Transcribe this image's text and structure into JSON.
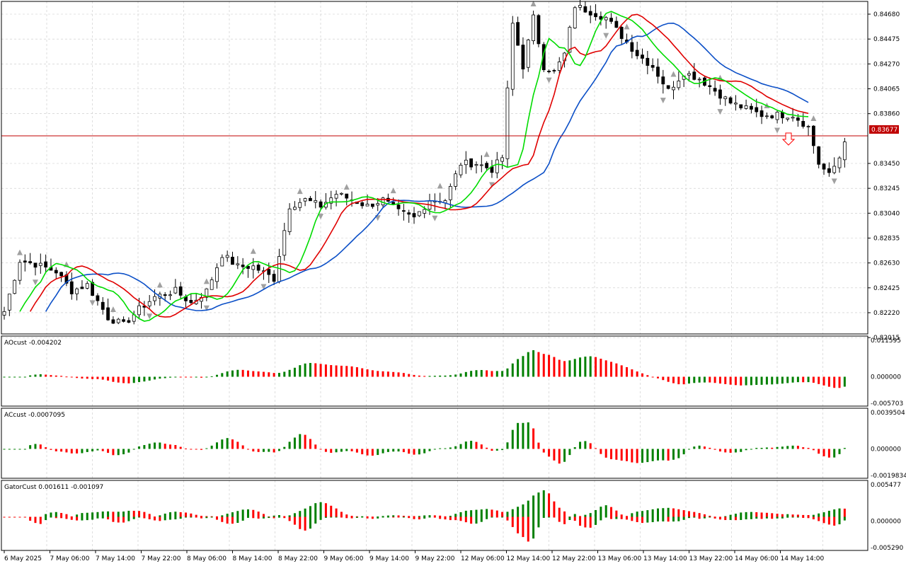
{
  "window": {
    "symbol_current_price": "0.83677"
  },
  "colors": {
    "bull": "#008000",
    "bear": "#ff0000",
    "grid": "#c8c8c8",
    "jaw": "#0b4fc7",
    "teeth": "#e00000",
    "lips": "#00dc00",
    "price_line": "#c00000",
    "fractal": "#a0a0a0"
  },
  "panels": {
    "main": {
      "ylim": [
        0.82045,
        0.84785
      ],
      "ticks": [
        "0.84680",
        "0.84475",
        "0.84270",
        "0.84065",
        "0.83860",
        "0.83450",
        "0.83245",
        "0.83040",
        "0.82835",
        "0.82630",
        "0.82425",
        "0.82220",
        "0.82015"
      ]
    },
    "ao": {
      "title": "AOcust -0.004202",
      "ticks": [
        "0.011595",
        "0.000000",
        "-0.005703"
      ]
    },
    "ac": {
      "title": "ACcust -0.0007095",
      "ticks": [
        "0.0039504",
        "0.000000",
        "-0.0019834"
      ]
    },
    "gator": {
      "title": "GatorCust 0.001611 -0.001097",
      "ticks": [
        "0.005477",
        "0.000000",
        "-0.005290"
      ]
    }
  },
  "time_axis": [
    "6 May 2025",
    "7 May 06:00",
    "7 May 14:00",
    "7 May 22:00",
    "8 May 06:00",
    "8 May 14:00",
    "8 May 22:00",
    "9 May 06:00",
    "9 May 14:00",
    "9 May 22:00",
    "12 May 06:00",
    "12 May 14:00",
    "12 May 22:00",
    "13 May 06:00",
    "13 May 14:00",
    "13 May 22:00",
    "14 May 06:00",
    "14 May 14:00"
  ],
  "chart_data": {
    "type": "candlestick",
    "close_anchors": [
      [
        0,
        0.8223
      ],
      [
        3,
        0.8265
      ],
      [
        6,
        0.8262
      ],
      [
        10,
        0.8256
      ],
      [
        13,
        0.824
      ],
      [
        16,
        0.8245
      ],
      [
        20,
        0.8218
      ],
      [
        23,
        0.8212
      ],
      [
        26,
        0.8225
      ],
      [
        29,
        0.8235
      ],
      [
        33,
        0.824
      ],
      [
        36,
        0.823
      ],
      [
        39,
        0.824
      ],
      [
        42,
        0.827
      ],
      [
        45,
        0.826
      ],
      [
        48,
        0.826
      ],
      [
        52,
        0.825
      ],
      [
        55,
        0.831
      ],
      [
        58,
        0.8315
      ],
      [
        61,
        0.831
      ],
      [
        64,
        0.832
      ],
      [
        67,
        0.8315
      ],
      [
        70,
        0.831
      ],
      [
        73,
        0.8315
      ],
      [
        76,
        0.8305
      ],
      [
        79,
        0.83
      ],
      [
        82,
        0.8315
      ],
      [
        85,
        0.8315
      ],
      [
        88,
        0.8345
      ],
      [
        91,
        0.8345
      ],
      [
        94,
        0.834
      ],
      [
        96,
        0.835
      ],
      [
        98,
        0.846
      ],
      [
        100,
        0.8425
      ],
      [
        102,
        0.8465
      ],
      [
        104,
        0.8425
      ],
      [
        106,
        0.842
      ],
      [
        108,
        0.8435
      ],
      [
        110,
        0.8475
      ],
      [
        113,
        0.847
      ],
      [
        116,
        0.8465
      ],
      [
        119,
        0.845
      ],
      [
        122,
        0.8435
      ],
      [
        125,
        0.8425
      ],
      [
        128,
        0.8405
      ],
      [
        131,
        0.842
      ],
      [
        134,
        0.8415
      ],
      [
        137,
        0.8405
      ],
      [
        140,
        0.8395
      ],
      [
        143,
        0.839
      ],
      [
        146,
        0.8385
      ],
      [
        149,
        0.8385
      ],
      [
        152,
        0.8385
      ],
      [
        155,
        0.8375
      ],
      [
        157,
        0.8345
      ],
      [
        159,
        0.8335
      ],
      [
        161,
        0.835
      ],
      [
        162,
        0.8365
      ]
    ]
  }
}
